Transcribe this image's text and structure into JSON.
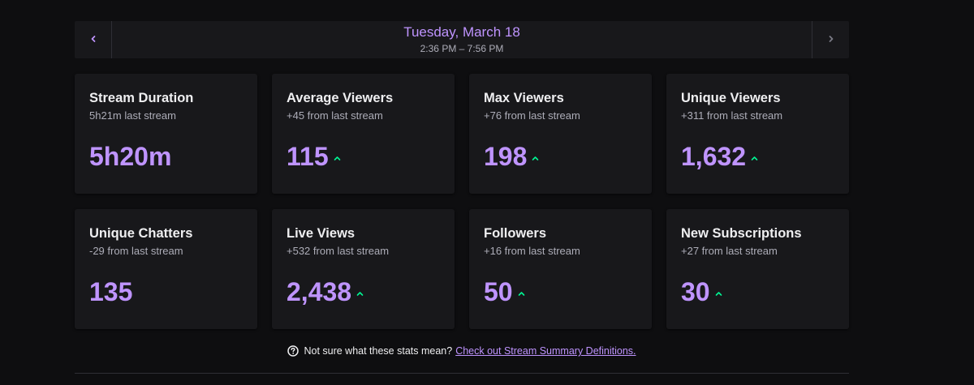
{
  "header": {
    "date": "Tuesday, March 18",
    "time_range": "2:36 PM – 7:56 PM",
    "prev_icon": "chevron-left-icon",
    "next_icon": "chevron-right-icon"
  },
  "stats": [
    {
      "title": "Stream Duration",
      "sub": "5h21m last stream",
      "value": "5h20m",
      "trend": "none"
    },
    {
      "title": "Average Viewers",
      "sub": "+45 from last stream",
      "value": "115",
      "trend": "up"
    },
    {
      "title": "Max Viewers",
      "sub": "+76 from last stream",
      "value": "198",
      "trend": "up"
    },
    {
      "title": "Unique Viewers",
      "sub": "+311 from last stream",
      "value": "1,632",
      "trend": "up"
    },
    {
      "title": "Unique Chatters",
      "sub": "-29 from last stream",
      "value": "135",
      "trend": "none"
    },
    {
      "title": "Live Views",
      "sub": "+532 from last stream",
      "value": "2,438",
      "trend": "up"
    },
    {
      "title": "Followers",
      "sub": "+16 from last stream",
      "value": "50",
      "trend": "up"
    },
    {
      "title": "New Subscriptions",
      "sub": "+27 from last stream",
      "value": "30",
      "trend": "up"
    }
  ],
  "help": {
    "text": "Not sure what these stats mean?",
    "link": "Check out Stream Summary Definitions.",
    "icon": "question-circle-icon"
  },
  "colors": {
    "accent": "#bf94ff",
    "trend_up": "#00f593",
    "card_bg": "#18181b",
    "page_bg": "#0e0e10"
  }
}
